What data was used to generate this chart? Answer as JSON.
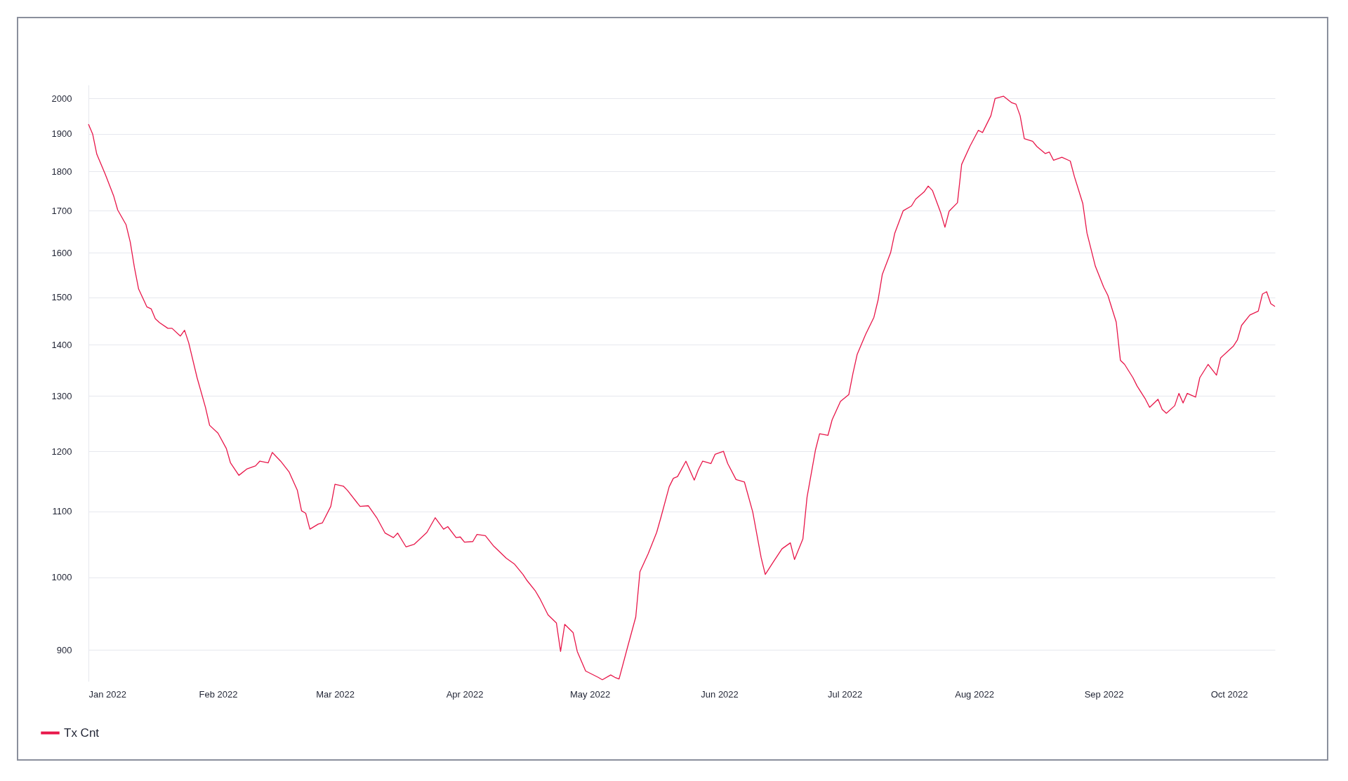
{
  "chart_data": {
    "type": "line",
    "ylabel": null,
    "x": [
      "2022-01-01",
      "2022-01-02",
      "2022-01-03",
      "2022-01-05",
      "2022-01-07",
      "2022-01-08",
      "2022-01-10",
      "2022-01-11",
      "2022-01-12",
      "2022-01-13",
      "2022-01-15",
      "2022-01-16",
      "2022-01-17",
      "2022-01-18",
      "2022-01-20",
      "2022-01-21",
      "2022-01-23",
      "2022-01-24",
      "2022-01-25",
      "2022-01-27",
      "2022-01-29",
      "2022-01-30",
      "2022-02-01",
      "2022-02-03",
      "2022-02-04",
      "2022-02-06",
      "2022-02-08",
      "2022-02-10",
      "2022-02-11",
      "2022-02-13",
      "2022-02-14",
      "2022-02-16",
      "2022-02-18",
      "2022-02-20",
      "2022-02-21",
      "2022-02-22",
      "2022-02-23",
      "2022-02-25",
      "2022-02-26",
      "2022-02-28",
      "2022-03-01",
      "2022-03-03",
      "2022-03-04",
      "2022-03-07",
      "2022-03-09",
      "2022-03-11",
      "2022-03-13",
      "2022-03-15",
      "2022-03-16",
      "2022-03-18",
      "2022-03-20",
      "2022-03-23",
      "2022-03-25",
      "2022-03-27",
      "2022-03-28",
      "2022-03-30",
      "2022-03-31",
      "2022-04-01",
      "2022-04-03",
      "2022-04-04",
      "2022-04-06",
      "2022-04-08",
      "2022-04-11",
      "2022-04-13",
      "2022-04-15",
      "2022-04-16",
      "2022-04-18",
      "2022-04-19",
      "2022-04-21",
      "2022-04-23",
      "2022-04-24",
      "2022-04-25",
      "2022-04-27",
      "2022-04-28",
      "2022-04-30",
      "2022-05-03",
      "2022-05-04",
      "2022-05-06",
      "2022-05-07",
      "2022-05-08",
      "2022-05-10",
      "2022-05-12",
      "2022-05-13",
      "2022-05-15",
      "2022-05-17",
      "2022-05-18",
      "2022-05-20",
      "2022-05-21",
      "2022-05-22",
      "2022-05-24",
      "2022-05-26",
      "2022-05-27",
      "2022-05-28",
      "2022-05-30",
      "2022-05-31",
      "2022-06-02",
      "2022-06-03",
      "2022-06-05",
      "2022-06-07",
      "2022-06-09",
      "2022-06-11",
      "2022-06-12",
      "2022-06-14",
      "2022-06-16",
      "2022-06-18",
      "2022-06-19",
      "2022-06-21",
      "2022-06-22",
      "2022-06-24",
      "2022-06-25",
      "2022-06-27",
      "2022-06-28",
      "2022-06-30",
      "2022-07-02",
      "2022-07-03",
      "2022-07-04",
      "2022-07-06",
      "2022-07-08",
      "2022-07-09",
      "2022-07-10",
      "2022-07-12",
      "2022-07-13",
      "2022-07-15",
      "2022-07-17",
      "2022-07-18",
      "2022-07-20",
      "2022-07-21",
      "2022-07-22",
      "2022-07-24",
      "2022-07-25",
      "2022-07-26",
      "2022-07-28",
      "2022-07-29",
      "2022-07-31",
      "2022-08-02",
      "2022-08-03",
      "2022-08-05",
      "2022-08-06",
      "2022-08-08",
      "2022-08-10",
      "2022-08-11",
      "2022-08-12",
      "2022-08-13",
      "2022-08-15",
      "2022-08-16",
      "2022-08-18",
      "2022-08-19",
      "2022-08-20",
      "2022-08-22",
      "2022-08-24",
      "2022-08-25",
      "2022-08-27",
      "2022-08-28",
      "2022-08-30",
      "2022-09-01",
      "2022-09-02",
      "2022-09-04",
      "2022-09-05",
      "2022-09-06",
      "2022-09-08",
      "2022-09-09",
      "2022-09-11",
      "2022-09-12",
      "2022-09-14",
      "2022-09-15",
      "2022-09-16",
      "2022-09-18",
      "2022-09-19",
      "2022-09-20",
      "2022-09-21",
      "2022-09-23",
      "2022-09-24",
      "2022-09-26",
      "2022-09-28",
      "2022-09-29",
      "2022-10-02",
      "2022-10-03",
      "2022-10-04",
      "2022-10-06",
      "2022-10-08",
      "2022-10-09",
      "2022-10-10",
      "2022-10-11",
      "2022-10-12"
    ],
    "series": [
      {
        "name": "Tx Cnt",
        "color": "#e8174a",
        "values": [
          1927,
          1900,
          1845,
          1793,
          1738,
          1702,
          1666,
          1625,
          1566,
          1518,
          1479,
          1475,
          1454,
          1446,
          1434,
          1434,
          1418,
          1430,
          1404,
          1335,
          1279,
          1246,
          1232,
          1205,
          1180,
          1159,
          1170,
          1175,
          1183,
          1180,
          1198,
          1183,
          1165,
          1134,
          1101,
          1097,
          1072,
          1080,
          1082,
          1108,
          1144,
          1141,
          1134,
          1108,
          1109,
          1090,
          1066,
          1059,
          1066,
          1045,
          1049,
          1067,
          1090,
          1072,
          1076,
          1059,
          1060,
          1052,
          1053,
          1064,
          1062,
          1046,
          1028,
          1019,
          1004,
          995,
          980,
          970,
          947,
          936,
          898,
          934,
          923,
          898,
          873,
          865,
          862,
          868,
          865,
          863,
          903,
          944,
          1008,
          1035,
          1067,
          1090,
          1140,
          1154,
          1157,
          1183,
          1151,
          1169,
          1183,
          1179,
          1195,
          1200,
          1179,
          1152,
          1148,
          1099,
          1029,
          1004,
          1023,
          1042,
          1051,
          1026,
          1057,
          1123,
          1202,
          1231,
          1228,
          1256,
          1290,
          1303,
          1344,
          1381,
          1421,
          1457,
          1494,
          1550,
          1600,
          1646,
          1700,
          1712,
          1729,
          1747,
          1762,
          1751,
          1695,
          1660,
          1699,
          1720,
          1818,
          1867,
          1910,
          1904,
          1951,
          2000,
          2007,
          1988,
          1984,
          1951,
          1887,
          1880,
          1866,
          1847,
          1851,
          1829,
          1837,
          1827,
          1786,
          1718,
          1646,
          1569,
          1522,
          1504,
          1447,
          1369,
          1361,
          1335,
          1319,
          1294,
          1279,
          1294,
          1275,
          1268,
          1282,
          1305,
          1287,
          1305,
          1298,
          1335,
          1361,
          1340,
          1374,
          1397,
          1410,
          1440,
          1462,
          1470,
          1507,
          1512,
          1486,
          1480
        ]
      }
    ],
    "xlim": [
      "2022-01-01",
      "2022-10-12"
    ],
    "xticks": [
      {
        "value": "2022-01-01",
        "label": "Jan 2022"
      },
      {
        "value": "2022-02-01",
        "label": "Feb 2022"
      },
      {
        "value": "2022-03-01",
        "label": "Mar 2022"
      },
      {
        "value": "2022-04-01",
        "label": "Apr 2022"
      },
      {
        "value": "2022-05-01",
        "label": "May 2022"
      },
      {
        "value": "2022-06-01",
        "label": "Jun 2022"
      },
      {
        "value": "2022-07-01",
        "label": "Jul 2022"
      },
      {
        "value": "2022-08-01",
        "label": "Aug 2022"
      },
      {
        "value": "2022-09-01",
        "label": "Sep 2022"
      },
      {
        "value": "2022-10-01",
        "label": "Oct 2022"
      }
    ],
    "ylim": [
      860,
      2040
    ],
    "yticks": [
      900,
      1000,
      1100,
      1200,
      1300,
      1400,
      1500,
      1600,
      1700,
      1800,
      1900,
      2000
    ],
    "log": "y",
    "grid": "y",
    "legend": "bottom left",
    "marker": "none",
    "line_style": "solid"
  }
}
